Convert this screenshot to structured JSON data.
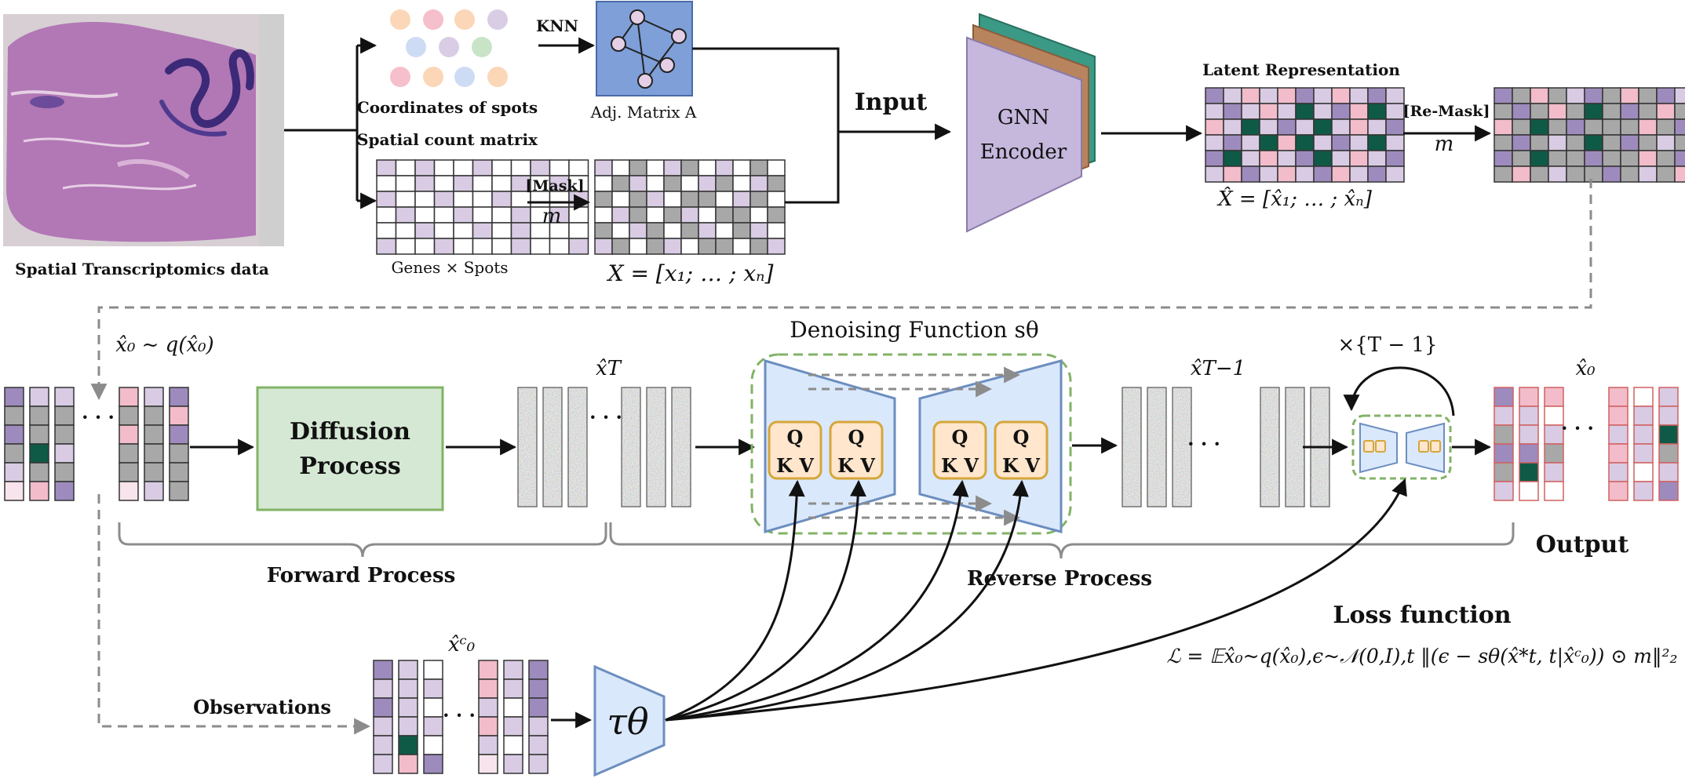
{
  "labels": {
    "st_data": "Spatial Transcriptomics data",
    "coords": "Coordinates of spots",
    "knn": "KNN",
    "adj": "Adj. Matrix A",
    "count_matrix": "Spatial count matrix",
    "mask": "[Mask]",
    "m1": "m",
    "genes_spots": "Genes × Spots",
    "x_eq": "X = [x₁; … ; xₙ]",
    "input": "Input",
    "gnn1": "GNN",
    "gnn2": "Encoder",
    "latent": "Latent Representation",
    "remask": "[Re-Mask]",
    "m2": "m",
    "xhat_eq": "X̂ = [x̂₁; … ; x̂ₙ]",
    "x0_dist": "x̂₀ ~ q(x̂₀)",
    "diff1": "Diffusion",
    "diff2": "Process",
    "xT": "x̂T",
    "denoise": "Denoising Function sθ",
    "q": "Q",
    "kv": "K V",
    "xT1": "x̂T−1",
    "times": "×{T − 1}",
    "x0_out": "x̂₀",
    "forward": "Forward Process",
    "reverse": "Reverse Process",
    "output": "Output",
    "loss_title": "Loss function",
    "loss_eq": "ℒ = 𝔼x̂₀~q(x̂₀),ϵ~𝒩(0,I),t ‖(ϵ − sθ(x̂*t, t|x̂ᶜ₀)) ⊙ m‖²₂",
    "x0c": "x̂ᶜ₀",
    "observations": "Observations",
    "tau": "τθ",
    "dots": "· · ·"
  },
  "colors": {
    "purple": "#9e8bbd",
    "lavender": "#d8cbe3",
    "pink": "#f2bcca",
    "light_pink": "#f7e4ec",
    "gray": "#a8a8a8",
    "dark_green": "#0f5a46",
    "white": "#ffffff",
    "diffusion_fill": "#d5e8d4",
    "diffusion_stroke": "#82b366",
    "unet_fill": "#dae8fc",
    "unet_stroke": "#6c8ebf",
    "qkv_fill": "#ffe6cc",
    "qkv_stroke": "#d6a63a",
    "adj_fill": "#7e9fd8",
    "gnn_front": "#c5b8dc",
    "gnn_mid": "#b8845e",
    "gnn_back": "#3a9a86",
    "dashed_green": "#82b366",
    "arrow_gray": "#8c8c8c"
  },
  "icons": [
    "tissue-image",
    "graph-icon",
    "noise-texture"
  ]
}
